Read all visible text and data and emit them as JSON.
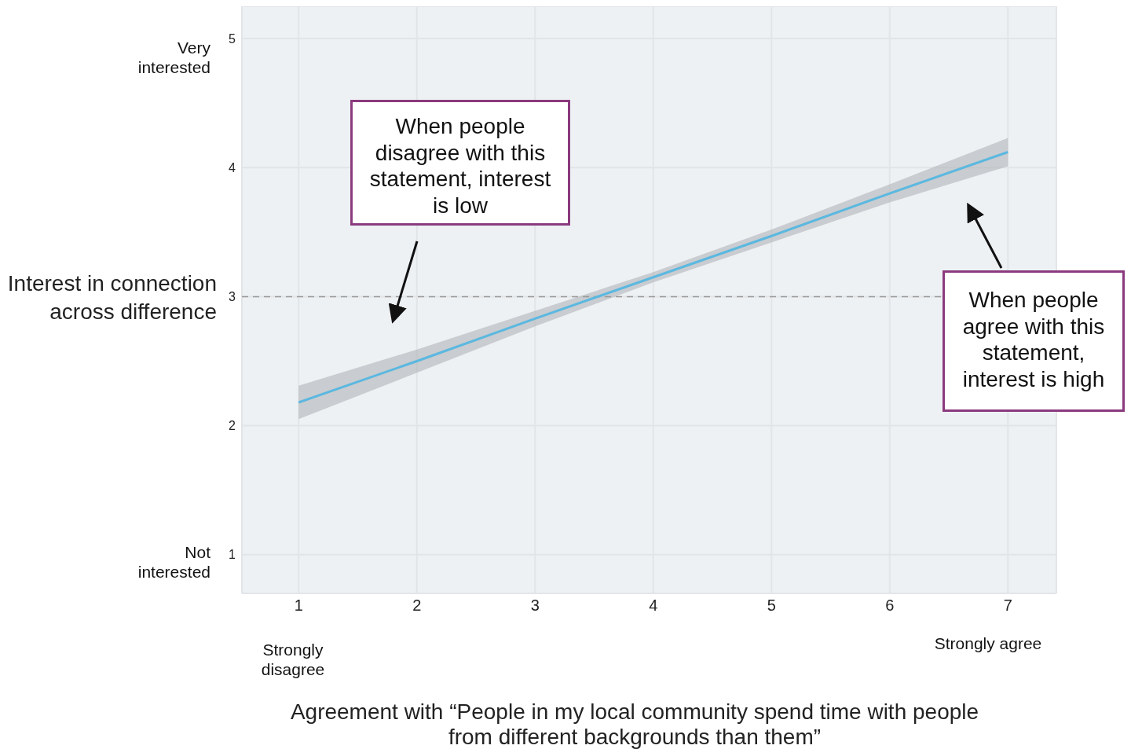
{
  "chart_data": {
    "type": "line",
    "xlabel": "Agreement with “People in my local community spend time with people from different backgrounds than them”",
    "ylabel": "Interest in connection across difference",
    "x": [
      1,
      2,
      3,
      4,
      5,
      6,
      7
    ],
    "series": [
      {
        "color": "#5bb8e0",
        "values": [
          2.18,
          2.5,
          2.83,
          3.15,
          3.47,
          3.8,
          4.12
        ],
        "lower": [
          2.05,
          2.41,
          2.77,
          3.11,
          3.42,
          3.73,
          4.01
        ],
        "upper": [
          2.31,
          2.59,
          2.89,
          3.19,
          3.52,
          3.87,
          4.23
        ]
      }
    ],
    "xlim": [
      0.52,
      7.41
    ],
    "ylim": [
      0.7,
      5.25
    ],
    "xticks": [
      1,
      2,
      3,
      4,
      5,
      6,
      7
    ],
    "yticks": [
      1,
      2,
      3,
      4,
      5
    ],
    "ref_lines": [
      {
        "axis": "y",
        "value": 3,
        "color": "#999999",
        "line_style": "dashed"
      }
    ],
    "grid": true,
    "marker": "none",
    "line_style": "solid",
    "annotations": [
      "Very interested",
      "Not interested",
      "Strongly disagree",
      "Strongly agree",
      "When people disagree with this statement, interest is low",
      "When people agree with this statement, interest is high"
    ]
  }
}
